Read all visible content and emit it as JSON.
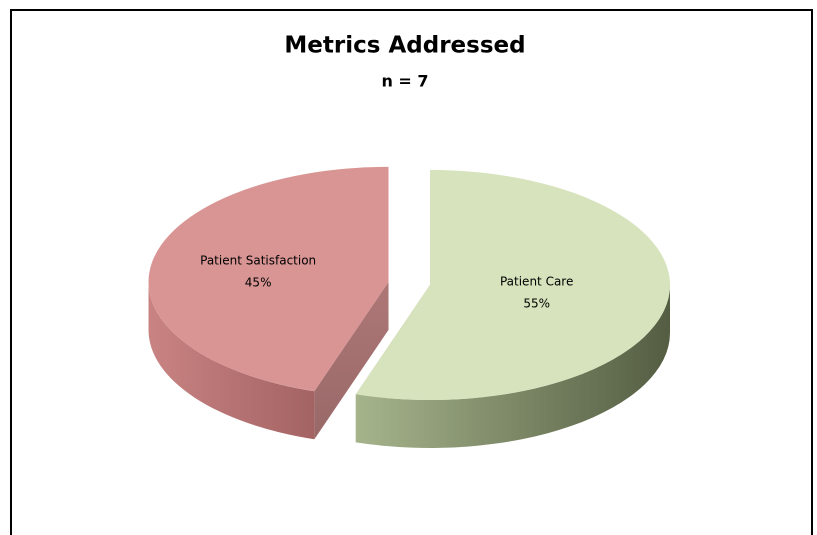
{
  "chart_data": {
    "type": "pie",
    "title": "Metrics Addressed",
    "subtitle": "n = 7",
    "categories": [
      "Patient Care",
      "Patient Satisfaction"
    ],
    "values": [
      55,
      45
    ],
    "value_labels": [
      "55%",
      "45%"
    ],
    "colors": [
      "#d6e3bc",
      "#d99594"
    ]
  }
}
